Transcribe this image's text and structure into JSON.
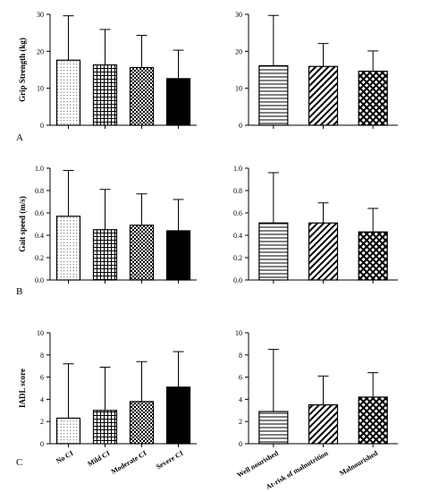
{
  "panel_labels": [
    "A",
    "B",
    "C"
  ],
  "group_labels_ci": [
    "No CI",
    "Mild CI",
    "Moderate CI",
    "Severe CI"
  ],
  "group_labels_nutrition": [
    "Well nourished",
    "At-risk of malnutrition",
    "Malnourished"
  ],
  "chart_data": [
    {
      "id": "grip-ci",
      "type": "bar",
      "row": 0,
      "col": 0,
      "groupset": "ci",
      "ylabel": "Grip Strength (kg)",
      "categories": [
        "No CI",
        "Mild CI",
        "Moderate CI",
        "Severe CI"
      ],
      "values": [
        17.6,
        16.3,
        15.6,
        12.6
      ],
      "errors": [
        12.0,
        9.6,
        8.7,
        7.7
      ],
      "ylim": [
        0,
        30
      ],
      "yticks": [
        "0",
        "10",
        "20",
        "30"
      ],
      "patterns": [
        "dots",
        "grid",
        "checker",
        "solid"
      ]
    },
    {
      "id": "grip-nut",
      "type": "bar",
      "row": 0,
      "col": 1,
      "groupset": "nutrition",
      "ylabel": "",
      "categories": [
        "Well nourished",
        "At-risk of malnutrition",
        "Malnourished"
      ],
      "values": [
        16.1,
        15.9,
        14.6
      ],
      "errors": [
        13.6,
        6.2,
        5.5
      ],
      "ylim": [
        0,
        30
      ],
      "yticks": [
        "0",
        "10",
        "20",
        "30"
      ],
      "patterns": [
        "hlines",
        "diag",
        "crosshatch"
      ]
    },
    {
      "id": "gait-ci",
      "type": "bar",
      "row": 1,
      "col": 0,
      "groupset": "ci",
      "ylabel": "Gait speed (m/s)",
      "categories": [
        "No CI",
        "Mild CI",
        "Moderate CI",
        "Severe CI"
      ],
      "values": [
        0.57,
        0.45,
        0.49,
        0.44
      ],
      "errors": [
        0.41,
        0.36,
        0.28,
        0.28
      ],
      "ylim": [
        0,
        1.0
      ],
      "yticks": [
        "0.0",
        "0.2",
        "0.4",
        "0.6",
        "0.8",
        "1.0"
      ],
      "patterns": [
        "dots",
        "grid",
        "checker",
        "solid"
      ]
    },
    {
      "id": "gait-nut",
      "type": "bar",
      "row": 1,
      "col": 1,
      "groupset": "nutrition",
      "ylabel": "",
      "categories": [
        "Well nourished",
        "At-risk of malnutrition",
        "Malnourished"
      ],
      "values": [
        0.51,
        0.51,
        0.43
      ],
      "errors": [
        0.45,
        0.18,
        0.21
      ],
      "ylim": [
        0,
        1.0
      ],
      "yticks": [
        "0.0",
        "0.2",
        "0.4",
        "0.6",
        "0.8",
        "1.0"
      ],
      "patterns": [
        "hlines",
        "diag",
        "crosshatch"
      ]
    },
    {
      "id": "iadl-ci",
      "type": "bar",
      "row": 2,
      "col": 0,
      "groupset": "ci",
      "ylabel": "IADL  score",
      "categories": [
        "No CI",
        "Mild CI",
        "Moderate CI",
        "Severe CI"
      ],
      "values": [
        2.3,
        3.0,
        3.8,
        5.1
      ],
      "errors": [
        4.9,
        3.9,
        3.6,
        3.2
      ],
      "ylim": [
        0,
        10
      ],
      "yticks": [
        "0",
        "2",
        "4",
        "6",
        "8",
        "10"
      ],
      "patterns": [
        "dots",
        "grid",
        "checker",
        "solid"
      ]
    },
    {
      "id": "iadl-nut",
      "type": "bar",
      "row": 2,
      "col": 1,
      "groupset": "nutrition",
      "ylabel": "",
      "categories": [
        "Well nourished",
        "At-risk of malnutrition",
        "Malnourished"
      ],
      "values": [
        2.9,
        3.5,
        4.2
      ],
      "errors": [
        5.6,
        2.6,
        2.2
      ],
      "ylim": [
        0,
        10
      ],
      "yticks": [
        "0",
        "2",
        "4",
        "6",
        "8",
        "10"
      ],
      "patterns": [
        "hlines",
        "diag",
        "crosshatch"
      ]
    }
  ]
}
